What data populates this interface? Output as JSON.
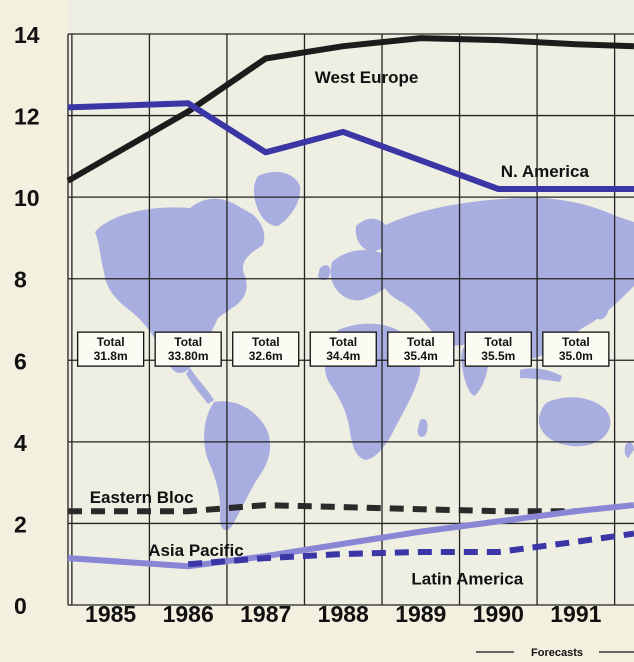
{
  "chart_data": {
    "type": "line",
    "categories": [
      "1985",
      "1986",
      "1987",
      "1988",
      "1989",
      "1990",
      "1991"
    ],
    "x_ticks": [
      {
        "label": "1985",
        "x": 1985
      },
      {
        "label": "1986",
        "x": 1986
      },
      {
        "label": "1987",
        "x": 1987
      },
      {
        "label": "1988",
        "x": 1988
      },
      {
        "label": "1989",
        "x": 1989
      },
      {
        "label": "1990",
        "x": 1990
      },
      {
        "label": "1991",
        "x": 1991
      }
    ],
    "x_range": [
      1984.45,
      1991.75
    ],
    "ylim": [
      0,
      14
    ],
    "y_ticks": [
      "0",
      "2",
      "4",
      "6",
      "8",
      "10",
      "12",
      "14"
    ],
    "grid": true,
    "background": "world-map",
    "forecast_label": "Forecasts",
    "forecast_from": 1990,
    "series": [
      {
        "name": "West Europe",
        "color": "#1c1c1c",
        "dash": "solid",
        "points": [
          [
            1984.45,
            10.4
          ],
          [
            1986,
            12.1
          ],
          [
            1987,
            13.4
          ],
          [
            1988,
            13.7
          ],
          [
            1989,
            13.9
          ],
          [
            1990,
            13.85
          ],
          [
            1991,
            13.75
          ],
          [
            1991.75,
            13.7
          ]
        ]
      },
      {
        "name": "N. America",
        "color": "#3a36a6",
        "dash": "solid",
        "points": [
          [
            1984.45,
            12.2
          ],
          [
            1986,
            12.3
          ],
          [
            1987,
            11.1
          ],
          [
            1988,
            11.6
          ],
          [
            1989,
            10.9
          ],
          [
            1990,
            10.2
          ],
          [
            1991,
            10.2
          ],
          [
            1991.75,
            10.2
          ]
        ]
      },
      {
        "name": "Eastern Bloc",
        "color": "#2a2a2a",
        "dash": "dashed",
        "points": [
          [
            1984.45,
            2.3
          ],
          [
            1986,
            2.3
          ],
          [
            1987,
            2.45
          ],
          [
            1988,
            2.4
          ],
          [
            1989,
            2.35
          ],
          [
            1990,
            2.3
          ],
          [
            1991,
            2.3
          ]
        ]
      },
      {
        "name": "Asia Pacific",
        "color": "#8a86d6",
        "dash": "solid",
        "points": [
          [
            1984.45,
            1.15
          ],
          [
            1986,
            0.95
          ],
          [
            1987,
            1.2
          ],
          [
            1988,
            1.5
          ],
          [
            1989,
            1.8
          ],
          [
            1990,
            2.05
          ],
          [
            1991,
            2.3
          ],
          [
            1991.75,
            2.45
          ]
        ]
      },
      {
        "name": "Latin America",
        "color": "#3a36a6",
        "dash": "dashed",
        "points": [
          [
            1986,
            1.0
          ],
          [
            1987,
            1.15
          ],
          [
            1988,
            1.25
          ],
          [
            1989,
            1.3
          ],
          [
            1990,
            1.3
          ],
          [
            1991,
            1.55
          ],
          [
            1991.75,
            1.75
          ]
        ]
      }
    ],
    "totals": [
      {
        "year": 1985,
        "label": "Total",
        "value": "31.8m"
      },
      {
        "year": 1986,
        "label": "Total",
        "value": "33.80m"
      },
      {
        "year": 1987,
        "label": "Total",
        "value": "32.6m"
      },
      {
        "year": 1988,
        "label": "Total",
        "value": "34.4m"
      },
      {
        "year": 1989,
        "label": "Total",
        "value": "35.4m"
      },
      {
        "year": 1990,
        "label": "Total",
        "value": "35.5m"
      },
      {
        "year": 1991,
        "label": "Total",
        "value": "35.0m"
      }
    ]
  }
}
